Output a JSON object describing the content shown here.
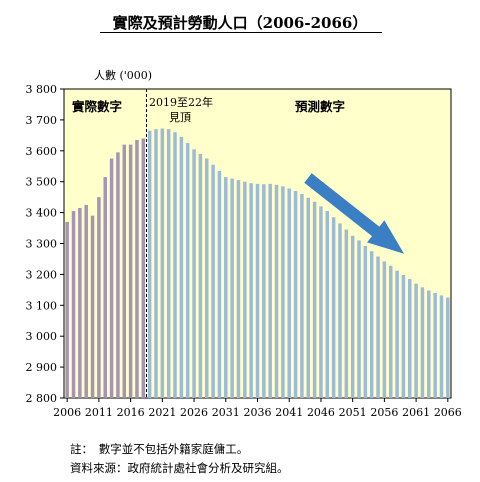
{
  "chart_data": {
    "type": "bar",
    "title": "實際及預計勞動人口（2006-2066）",
    "ylabel": "人數 ('000)",
    "ylim": [
      2800,
      3800
    ],
    "yticks": [
      2800,
      2900,
      3000,
      3100,
      3200,
      3300,
      3400,
      3500,
      3600,
      3700,
      3800
    ],
    "ytick_labels": [
      "2 800",
      "2 900",
      "3 000",
      "3 100",
      "3 200",
      "3 300",
      "3 400",
      "3 500",
      "3 600",
      "3 700",
      "3 800"
    ],
    "x_start": 2006,
    "x_end": 2066,
    "xtick_labels": [
      "2006",
      "2011",
      "2016",
      "2021",
      "2026",
      "2031",
      "2036",
      "2041",
      "2046",
      "2051",
      "2056",
      "2061",
      "2066"
    ],
    "actual_label": "實際數字",
    "projection_label": "預測數字",
    "peak_annotation": [
      "2019至22年",
      "見頂"
    ],
    "series": [
      {
        "key": "actual",
        "color": "#a793b6",
        "x": [
          2006,
          2007,
          2008,
          2009,
          2010,
          2011,
          2012,
          2013,
          2014,
          2015,
          2016,
          2017,
          2018
        ],
        "values": [
          3370,
          3405,
          3415,
          3425,
          3390,
          3450,
          3515,
          3575,
          3595,
          3620,
          3620,
          3635,
          3640
        ]
      },
      {
        "key": "projected",
        "color": "#9dbad6",
        "x": [
          2019,
          2020,
          2021,
          2022,
          2023,
          2024,
          2025,
          2026,
          2027,
          2028,
          2029,
          2030,
          2031,
          2032,
          2033,
          2034,
          2035,
          2036,
          2037,
          2038,
          2039,
          2040,
          2041,
          2042,
          2043,
          2044,
          2045,
          2046,
          2047,
          2048,
          2049,
          2050,
          2051,
          2052,
          2053,
          2054,
          2055,
          2056,
          2057,
          2058,
          2059,
          2060,
          2061,
          2062,
          2063,
          2064,
          2065,
          2066
        ],
        "values": [
          3665,
          3670,
          3672,
          3670,
          3660,
          3645,
          3625,
          3605,
          3590,
          3575,
          3555,
          3535,
          3515,
          3510,
          3505,
          3500,
          3495,
          3493,
          3492,
          3493,
          3490,
          3485,
          3478,
          3470,
          3460,
          3448,
          3435,
          3420,
          3405,
          3385,
          3365,
          3345,
          3325,
          3310,
          3292,
          3275,
          3258,
          3242,
          3228,
          3212,
          3198,
          3185,
          3170,
          3158,
          3148,
          3140,
          3132,
          3125
        ]
      }
    ],
    "colors": {
      "background": "#ffffcc",
      "arrow": "#3a7ec4",
      "text": "#000000"
    }
  },
  "notes": {
    "note1": "註：　數字並不包括外籍家庭傭工。",
    "note2": "資料來源：政府統計處社會分析及研究組。"
  }
}
